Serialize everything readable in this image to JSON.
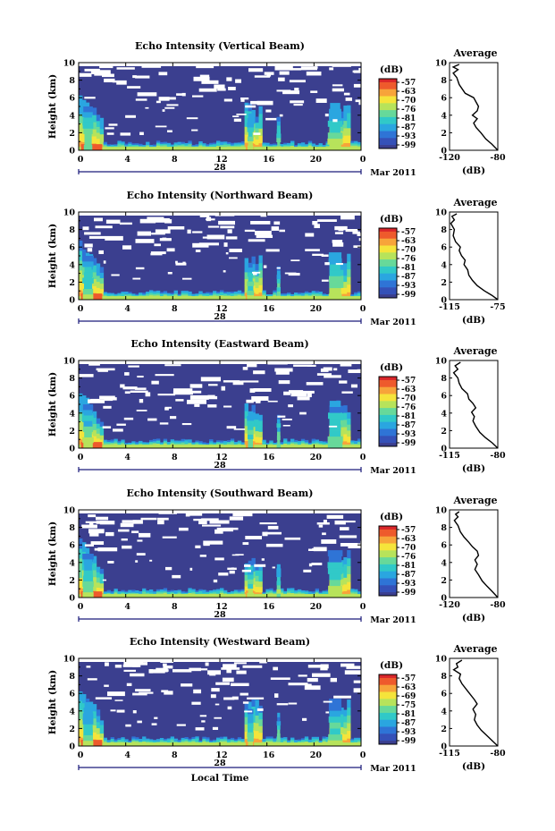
{
  "chart_data": [
    {
      "type": "heatmap",
      "title": "Echo Intensity (Vertical Beam)",
      "ylabel": "Height (km)",
      "x_ticks": [
        "0",
        "4",
        "8",
        "12",
        "16",
        "20",
        "0"
      ],
      "y_ticks": [
        "0",
        "2",
        "4",
        "6",
        "8",
        "10"
      ],
      "ylim": [
        0,
        10
      ],
      "xlim": [
        0,
        24
      ],
      "date_day": "28",
      "date_label": "Mar 2011",
      "colorbar": {
        "unit": "(dB)",
        "ticks": [
          "-57",
          "-63",
          "-70",
          "-76",
          "-81",
          "-87",
          "-93",
          "-99"
        ]
      },
      "average_profile": {
        "title": "Average",
        "xlabel": "(dB)",
        "x_ticks": [
          "-120",
          "-80"
        ],
        "xlim": [
          -120,
          -80
        ],
        "y_ticks": [
          "0",
          "2",
          "4",
          "6",
          "8",
          "10"
        ],
        "points": [
          [
            -80,
            0
          ],
          [
            -85,
            0.7
          ],
          [
            -90,
            1.3
          ],
          [
            -94,
            2.0
          ],
          [
            -98,
            2.6
          ],
          [
            -100,
            3.1
          ],
          [
            -97,
            3.6
          ],
          [
            -101,
            4.0
          ],
          [
            -97,
            4.5
          ],
          [
            -96,
            5.0
          ],
          [
            -98,
            5.5
          ],
          [
            -100,
            6.0
          ],
          [
            -107,
            6.5
          ],
          [
            -112,
            7.5
          ],
          [
            -114,
            8.3
          ],
          [
            -117,
            8.8
          ],
          [
            -113,
            9.2
          ],
          [
            -117,
            9.5
          ],
          [
            -112,
            9.8
          ]
        ]
      }
    },
    {
      "type": "heatmap",
      "title": "Echo Intensity (Northward Beam)",
      "ylabel": "Height (km)",
      "x_ticks": [
        "0",
        "4",
        "8",
        "12",
        "16",
        "20",
        "0"
      ],
      "y_ticks": [
        "0",
        "2",
        "4",
        "6",
        "8",
        "10"
      ],
      "ylim": [
        0,
        10
      ],
      "xlim": [
        0,
        24
      ],
      "date_day": "28",
      "date_label": "Mar 2011",
      "colorbar": {
        "unit": "(dB)",
        "ticks": [
          "-57",
          "-63",
          "-70",
          "-76",
          "-81",
          "-87",
          "-93",
          "-99"
        ]
      },
      "average_profile": {
        "title": "Average",
        "xlabel": "(dB)",
        "x_ticks": [
          "-115",
          "-75"
        ],
        "xlim": [
          -115,
          -75
        ],
        "y_ticks": [
          "0",
          "2",
          "4",
          "6",
          "8",
          "10"
        ],
        "points": [
          [
            -75,
            0
          ],
          [
            -80,
            0.5
          ],
          [
            -86,
            1.0
          ],
          [
            -92,
            1.6
          ],
          [
            -96,
            2.2
          ],
          [
            -99,
            2.8
          ],
          [
            -100,
            3.4
          ],
          [
            -103,
            4.0
          ],
          [
            -102,
            4.5
          ],
          [
            -105,
            5.0
          ],
          [
            -107,
            5.6
          ],
          [
            -106,
            6.0
          ],
          [
            -110,
            6.6
          ],
          [
            -112,
            7.3
          ],
          [
            -111,
            8.0
          ],
          [
            -114,
            8.7
          ],
          [
            -111,
            9.1
          ],
          [
            -113,
            9.5
          ],
          [
            -109,
            9.8
          ]
        ]
      }
    },
    {
      "type": "heatmap",
      "title": "Echo Intensity (Eastward Beam)",
      "ylabel": "Height (km)",
      "x_ticks": [
        "0",
        "4",
        "8",
        "12",
        "16",
        "20",
        "0"
      ],
      "y_ticks": [
        "0",
        "2",
        "4",
        "6",
        "8",
        "10"
      ],
      "ylim": [
        0,
        10
      ],
      "xlim": [
        0,
        24
      ],
      "date_day": "28",
      "date_label": "Mar 2011",
      "colorbar": {
        "unit": "(dB)",
        "ticks": [
          "-57",
          "-63",
          "-70",
          "-76",
          "-81",
          "-87",
          "-93",
          "-99"
        ]
      },
      "average_profile": {
        "title": "Average",
        "xlabel": "(dB)",
        "x_ticks": [
          "-115",
          "-80"
        ],
        "xlim": [
          -115,
          -80
        ],
        "y_ticks": [
          "0",
          "2",
          "4",
          "6",
          "8",
          "10"
        ],
        "points": [
          [
            -80,
            0
          ],
          [
            -84,
            0.6
          ],
          [
            -89,
            1.2
          ],
          [
            -93,
            1.8
          ],
          [
            -96,
            2.5
          ],
          [
            -98,
            3.1
          ],
          [
            -97,
            3.6
          ],
          [
            -99,
            4.1
          ],
          [
            -96,
            4.6
          ],
          [
            -98,
            5.1
          ],
          [
            -101,
            5.6
          ],
          [
            -102,
            6.2
          ],
          [
            -106,
            6.8
          ],
          [
            -108,
            7.4
          ],
          [
            -109,
            8.0
          ],
          [
            -112,
            8.6
          ],
          [
            -109,
            9.0
          ],
          [
            -111,
            9.4
          ],
          [
            -107,
            9.8
          ]
        ]
      }
    },
    {
      "type": "heatmap",
      "title": "Echo Intensity (Southward Beam)",
      "ylabel": "Height (km)",
      "x_ticks": [
        "0",
        "4",
        "8",
        "12",
        "16",
        "20",
        "0"
      ],
      "y_ticks": [
        "0",
        "2",
        "4",
        "6",
        "8",
        "10"
      ],
      "ylim": [
        0,
        10
      ],
      "xlim": [
        0,
        24
      ],
      "date_day": "28",
      "date_label": "Mar 2011",
      "colorbar": {
        "unit": "(dB)",
        "ticks": [
          "-57",
          "-63",
          "-70",
          "-76",
          "-81",
          "-87",
          "-93",
          "-99"
        ]
      },
      "average_profile": {
        "title": "Average",
        "xlabel": "(dB)",
        "x_ticks": [
          "-120",
          "-80"
        ],
        "xlim": [
          -120,
          -80
        ],
        "y_ticks": [
          "0",
          "2",
          "4",
          "6",
          "8",
          "10"
        ],
        "points": [
          [
            -80,
            0
          ],
          [
            -84,
            0.6
          ],
          [
            -89,
            1.3
          ],
          [
            -93,
            1.9
          ],
          [
            -96,
            2.6
          ],
          [
            -99,
            3.2
          ],
          [
            -97,
            3.8
          ],
          [
            -99,
            4.3
          ],
          [
            -96,
            4.8
          ],
          [
            -97,
            5.3
          ],
          [
            -101,
            5.8
          ],
          [
            -104,
            6.3
          ],
          [
            -108,
            6.9
          ],
          [
            -111,
            7.5
          ],
          [
            -113,
            8.2
          ],
          [
            -116,
            8.8
          ],
          [
            -113,
            9.2
          ],
          [
            -115,
            9.5
          ],
          [
            -112,
            9.8
          ]
        ]
      }
    },
    {
      "type": "heatmap",
      "title": "Echo Intensity (Westward Beam)",
      "ylabel": "Height (km)",
      "x_ticks": [
        "0",
        "4",
        "8",
        "12",
        "16",
        "20",
        "0"
      ],
      "y_ticks": [
        "0",
        "2",
        "4",
        "6",
        "8",
        "10"
      ],
      "ylim": [
        0,
        10
      ],
      "xlim": [
        0,
        24
      ],
      "date_day": "28",
      "date_label": "Mar 2011",
      "xlabel": "Local Time",
      "colorbar": {
        "unit": "(dB)",
        "ticks": [
          "-57",
          "-63",
          "-69",
          "-75",
          "-81",
          "-87",
          "-93",
          "-99"
        ]
      },
      "average_profile": {
        "title": "Average",
        "xlabel": "(dB)",
        "x_ticks": [
          "-115",
          "-80"
        ],
        "xlim": [
          -115,
          -80
        ],
        "y_ticks": [
          "0",
          "2",
          "4",
          "6",
          "8",
          "10"
        ],
        "points": [
          [
            -80,
            0
          ],
          [
            -84,
            0.6
          ],
          [
            -88,
            1.2
          ],
          [
            -92,
            1.8
          ],
          [
            -95,
            2.4
          ],
          [
            -97,
            3.0
          ],
          [
            -96,
            3.6
          ],
          [
            -98,
            4.2
          ],
          [
            -95,
            4.8
          ],
          [
            -97,
            5.3
          ],
          [
            -100,
            5.9
          ],
          [
            -103,
            6.5
          ],
          [
            -106,
            7.1
          ],
          [
            -108,
            7.7
          ],
          [
            -107,
            8.2
          ],
          [
            -112,
            8.7
          ],
          [
            -109,
            9.0
          ],
          [
            -110,
            9.4
          ],
          [
            -106,
            9.8
          ]
        ]
      }
    }
  ],
  "colormap": [
    "#3b3f8f",
    "#3551b8",
    "#2f74d6",
    "#2aa6e0",
    "#31c9c8",
    "#67d99a",
    "#b7e35b",
    "#f5e43b",
    "#f7a43a",
    "#ee5a2c",
    "#d9262a"
  ],
  "background_color": "#3b3f8f"
}
